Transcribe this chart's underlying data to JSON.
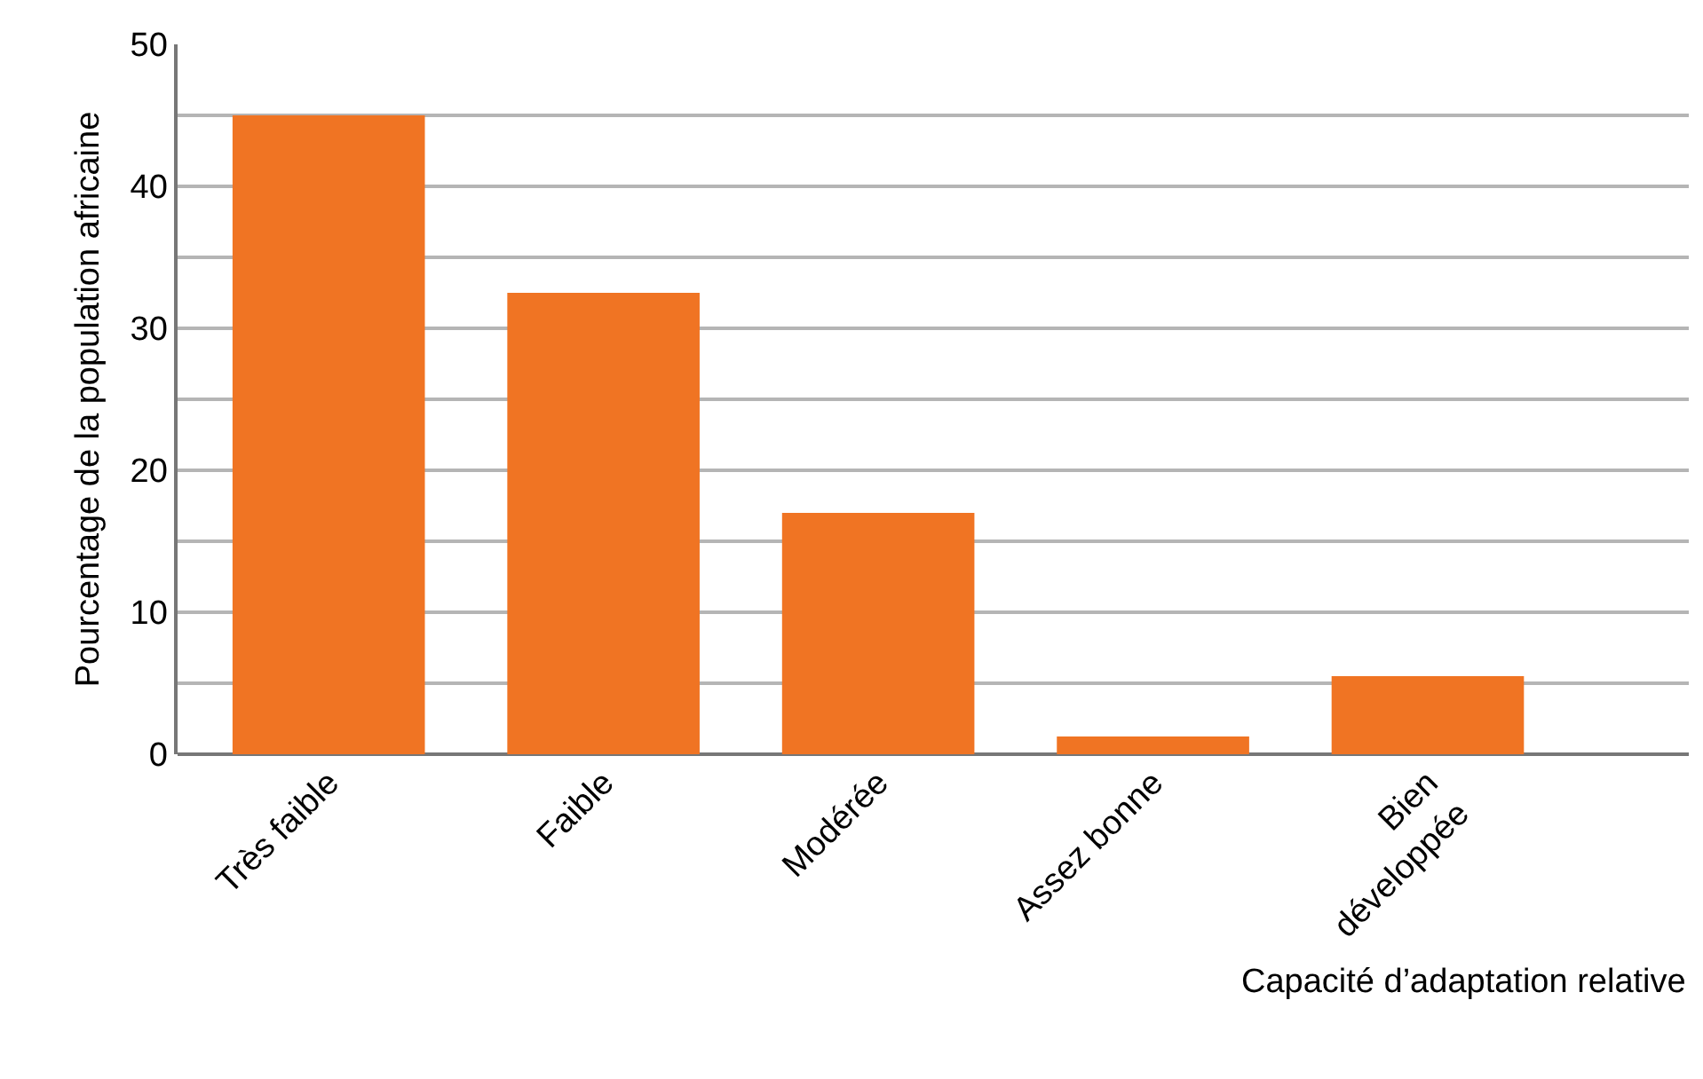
{
  "chart_data": {
    "type": "bar",
    "xlabel": "Capacité d’adaptation relative",
    "ylabel": "Pourcentage de la population africaine",
    "categories": [
      "Très faible",
      "Faible",
      "Modérée",
      "Assez bonne",
      "Bien\ndéveloppée"
    ],
    "values": [
      45,
      32.5,
      17,
      1.25,
      5.5
    ],
    "color": "#f07423",
    "ylim": [
      0,
      50
    ],
    "yticks": [
      0,
      {
        "value": 5,
        "label": null
      },
      10,
      {
        "value": 15,
        "label": null
      },
      20,
      {
        "value": 25,
        "label": null
      },
      30,
      {
        "value": 35,
        "label": null
      },
      40,
      {
        "value": 45,
        "label": null
      },
      50
    ],
    "grid": "y",
    "legend": false
  }
}
